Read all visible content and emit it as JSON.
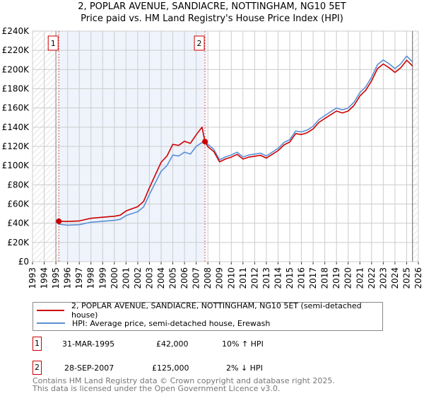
{
  "chart_data": {
    "type": "line",
    "title": "2, POPLAR AVENUE, SANDIACRE, NOTTINGHAM, NG10 5ET",
    "subtitle": "Price paid vs. HM Land Registry's House Price Index (HPI)",
    "xlabel": "",
    "ylabel": "",
    "xlim": [
      1993,
      2026
    ],
    "ylim": [
      0,
      240000
    ],
    "x_ticks": [
      "1993",
      "1994",
      "1995",
      "1996",
      "1997",
      "1998",
      "1999",
      "2000",
      "2001",
      "2002",
      "2003",
      "2004",
      "2005",
      "2006",
      "2007",
      "2008",
      "2009",
      "2010",
      "2011",
      "2012",
      "2013",
      "2014",
      "2015",
      "2016",
      "2017",
      "2018",
      "2019",
      "2020",
      "2021",
      "2022",
      "2023",
      "2024",
      "2025",
      "2026"
    ],
    "y_ticks": [
      {
        "v": 0,
        "label": "£0"
      },
      {
        "v": 20000,
        "label": "£20K"
      },
      {
        "v": 40000,
        "label": "£40K"
      },
      {
        "v": 60000,
        "label": "£60K"
      },
      {
        "v": 80000,
        "label": "£80K"
      },
      {
        "v": 100000,
        "label": "£100K"
      },
      {
        "v": 120000,
        "label": "£120K"
      },
      {
        "v": 140000,
        "label": "£140K"
      },
      {
        "v": 160000,
        "label": "£160K"
      },
      {
        "v": 180000,
        "label": "£180K"
      },
      {
        "v": 200000,
        "label": "£200K"
      },
      {
        "v": 220000,
        "label": "£220K"
      },
      {
        "v": 240000,
        "label": "£240K"
      }
    ],
    "grid": true,
    "legend_placement": "below",
    "series": [
      {
        "name": "2, POPLAR AVENUE, SANDIACRE, NOTTINGHAM, NG10 5ET (semi-detached house)",
        "color": "#cc0000",
        "x": [
          1995.25,
          1996,
          1997,
          1998,
          1999,
          2000,
          2000.5,
          2001,
          2002,
          2002.5,
          2003,
          2003.5,
          2004,
          2004.5,
          2005,
          2005.5,
          2006,
          2006.5,
          2007,
          2007.5,
          2007.75,
          2008,
          2008.5,
          2009,
          2009.5,
          2010,
          2010.5,
          2011,
          2011.5,
          2012,
          2012.5,
          2013,
          2013.5,
          2014,
          2014.5,
          2015,
          2015.5,
          2016,
          2016.5,
          2017,
          2017.5,
          2018,
          2018.5,
          2019,
          2019.5,
          2020,
          2020.5,
          2021,
          2021.5,
          2022,
          2022.5,
          2023,
          2023.5,
          2024,
          2024.5,
          2025,
          2025.5
        ],
        "y": [
          42000,
          41800,
          42400,
          45100,
          46200,
          47300,
          48400,
          52800,
          57200,
          62700,
          77000,
          90200,
          103400,
          110000,
          122100,
          121000,
          125400,
          123200,
          132000,
          140000,
          125000,
          119600,
          114700,
          103900,
          106800,
          108800,
          111700,
          106800,
          108800,
          109800,
          110700,
          107800,
          111700,
          115600,
          121500,
          124500,
          133300,
          132300,
          134300,
          138200,
          145000,
          149000,
          152900,
          156800,
          154800,
          156800,
          162700,
          172500,
          178400,
          188200,
          200900,
          205800,
          201900,
          197000,
          201900,
          209700,
          203800
        ]
      },
      {
        "name": "HPI: Average price, semi-detached house, Erewash",
        "color": "#5b8fd4",
        "x": [
          1995.25,
          1996,
          1997,
          1998,
          1999,
          2000,
          2000.5,
          2001,
          2002,
          2002.5,
          2003,
          2003.5,
          2004,
          2004.5,
          2005,
          2005.5,
          2006,
          2006.5,
          2007,
          2007.5,
          2007.75,
          2008,
          2008.5,
          2009,
          2009.5,
          2010,
          2010.5,
          2011,
          2011.5,
          2012,
          2012.5,
          2013,
          2013.5,
          2014,
          2014.5,
          2015,
          2015.5,
          2016,
          2016.5,
          2017,
          2017.5,
          2018,
          2018.5,
          2019,
          2019.5,
          2020,
          2020.5,
          2021,
          2021.5,
          2022,
          2022.5,
          2023,
          2023.5,
          2024,
          2024.5,
          2025,
          2025.5
        ],
        "y": [
          39000,
          38000,
          38500,
          41000,
          42000,
          43000,
          44000,
          48000,
          52000,
          57000,
          70000,
          82000,
          94000,
          100000,
          111000,
          110000,
          114000,
          112000,
          120000,
          124000,
          127500,
          122000,
          117000,
          106000,
          109000,
          111000,
          114000,
          109000,
          111000,
          112000,
          113000,
          110000,
          114000,
          118000,
          124000,
          127000,
          136000,
          135000,
          137000,
          141000,
          148000,
          152000,
          156000,
          160000,
          158000,
          160000,
          166000,
          176000,
          182000,
          192000,
          205000,
          210000,
          206000,
          201000,
          206000,
          214000,
          208000
        ]
      }
    ],
    "sales": [
      {
        "label": "1",
        "x": 1995.25,
        "price": 42000,
        "date": "31-MAR-1995",
        "price_text": "£42,000",
        "hpi_text": "10% ↑ HPI"
      },
      {
        "label": "2",
        "x": 2007.75,
        "price": 125000,
        "date": "28-SEP-2007",
        "price_text": "£125,000",
        "hpi_text": "2% ↓ HPI"
      }
    ],
    "data_end": 2025.5
  },
  "footer": {
    "line1": "Contains HM Land Registry data © Crown copyright and database right 2025.",
    "line2": "This data is licensed under the Open Government Licence v3.0."
  }
}
